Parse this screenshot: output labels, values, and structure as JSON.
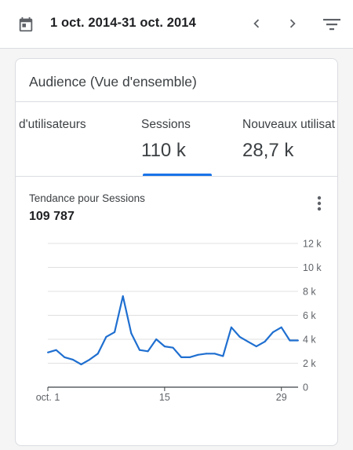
{
  "header": {
    "date_range": "1 oct. 2014-31 oct. 2014",
    "icons": {
      "calendar": "calendar-icon",
      "prev": "chevron-left-icon",
      "next": "chevron-right-icon",
      "filter": "filter-list-icon"
    }
  },
  "card": {
    "title": "Audience (Vue d'ensemble)",
    "metrics": [
      {
        "label": "d'utilisateurs",
        "value": ""
      },
      {
        "label": "Sessions",
        "value": "110 k"
      },
      {
        "label": "Nouveaux utilisat",
        "value": "28,7 k"
      }
    ],
    "selected_metric": "Sessions",
    "trend_title": "Tendance pour Sessions",
    "trend_total": "109 787"
  },
  "colors": {
    "accent": "#1a73e8",
    "line": "#1f6fd0",
    "text": "#202124",
    "muted": "#5f6368"
  },
  "chart_data": {
    "type": "line",
    "x_tick_labels": [
      "oct. 1",
      "15",
      "29"
    ],
    "y_tick_labels": [
      "0",
      "2 k",
      "4 k",
      "6 k",
      "8 k",
      "10 k",
      "12 k"
    ],
    "ylim": [
      0,
      12000
    ],
    "y_ticks": [
      0,
      2000,
      4000,
      6000,
      8000,
      10000,
      12000
    ],
    "x_ticks": [
      1,
      15,
      29
    ],
    "grid": true,
    "series": [
      {
        "x": [
          1,
          2,
          3,
          4,
          5,
          6,
          7,
          8,
          9,
          10,
          11,
          12,
          13,
          14,
          15,
          16,
          17,
          18,
          19,
          20,
          21,
          22,
          23,
          24,
          25,
          26,
          27,
          28,
          29,
          30,
          31
        ],
        "values": [
          2900,
          3100,
          2500,
          2300,
          1900,
          2300,
          2800,
          4200,
          4600,
          7600,
          4500,
          3100,
          3000,
          4000,
          3400,
          3300,
          2500,
          2500,
          2700,
          2800,
          2800,
          2600,
          5000,
          4200,
          3800,
          3400,
          3800,
          4600,
          5000,
          3900,
          3900
        ]
      }
    ]
  }
}
